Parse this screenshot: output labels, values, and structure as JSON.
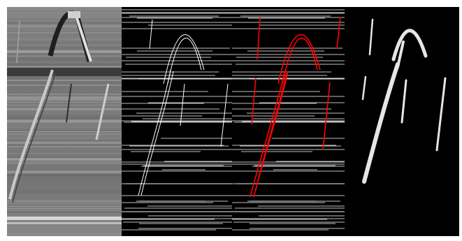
{
  "figure": {
    "panels": [
      {
        "id": "grayscale-input",
        "description_kind": "photo"
      },
      {
        "id": "edge-map",
        "description_kind": "photo"
      },
      {
        "id": "edge-overlay",
        "description_kind": "photo"
      },
      {
        "id": "segmentation-mask",
        "description_kind": "photo"
      }
    ],
    "colors": {
      "background": "#000000",
      "edge": "#ffffff",
      "highlight": "#ff0000",
      "gray_mid": "#7a7a7a",
      "gray_dark": "#3a3a3a",
      "mask": "#e6e6e6"
    }
  }
}
